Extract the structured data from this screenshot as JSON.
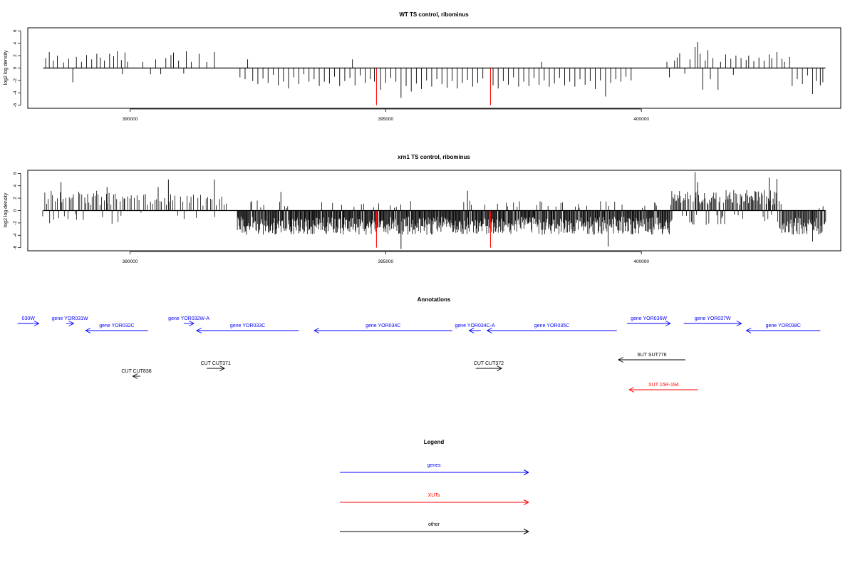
{
  "chart_data": [
    {
      "type": "bar",
      "title": "WT TS control, ribominus",
      "xlabel": "",
      "ylabel": "log2 log density",
      "xlim": [
        388000,
        403900
      ],
      "ylim": [
        -6.5,
        6.5
      ],
      "xticks": [
        390000,
        395000,
        400000
      ],
      "xtick_labels": [
        "390000",
        "395000",
        "400000"
      ],
      "yticks": [
        -6,
        -4,
        -2,
        0,
        2,
        4,
        6
      ],
      "ytick_labels": [
        "-6",
        "-4",
        "-2",
        "0",
        "2",
        "4",
        "6"
      ],
      "baseline": {
        "from": 388300,
        "to": 403600
      },
      "grid": false,
      "highlight_color": "#ff0000",
      "highlight": [
        [
          394820,
          -6
        ],
        [
          397050,
          -6
        ]
      ],
      "bars": [
        [
          388350,
          1.6
        ],
        [
          388420,
          2.6
        ],
        [
          388500,
          1.2
        ],
        [
          388580,
          2.0
        ],
        [
          388700,
          0.9
        ],
        [
          388800,
          1.5
        ],
        [
          388880,
          -2.3
        ],
        [
          388950,
          1.8
        ],
        [
          389050,
          1.0
        ],
        [
          389150,
          2.1
        ],
        [
          389250,
          1.4
        ],
        [
          389350,
          2.3
        ],
        [
          389420,
          1.7
        ],
        [
          389500,
          1.2
        ],
        [
          389600,
          2.3
        ],
        [
          389680,
          1.9
        ],
        [
          389750,
          2.7
        ],
        [
          389830,
          1.3
        ],
        [
          389900,
          2.5
        ],
        [
          389850,
          -1.0
        ],
        [
          389950,
          1.0
        ],
        [
          390250,
          1.0
        ],
        [
          390400,
          -1.0
        ],
        [
          390500,
          1.4
        ],
        [
          390600,
          -1.0
        ],
        [
          390700,
          1.6
        ],
        [
          390800,
          2.1
        ],
        [
          390850,
          2.5
        ],
        [
          390950,
          1.2
        ],
        [
          391050,
          -0.9
        ],
        [
          391100,
          2.7
        ],
        [
          391200,
          1.0
        ],
        [
          391350,
          2.3
        ],
        [
          391500,
          1.0
        ],
        [
          391650,
          2.6
        ],
        [
          392150,
          -1.5
        ],
        [
          392250,
          -1.8
        ],
        [
          392300,
          1.4
        ],
        [
          392400,
          -2.1
        ],
        [
          392500,
          -2.6
        ],
        [
          392600,
          -1.7
        ],
        [
          392700,
          -2.4
        ],
        [
          392800,
          -1.1
        ],
        [
          392900,
          -2.8
        ],
        [
          393000,
          -2.2
        ],
        [
          393100,
          -3.3
        ],
        [
          393200,
          -1.5
        ],
        [
          393300,
          -2.6
        ],
        [
          393400,
          -1.0
        ],
        [
          393500,
          -2.2
        ],
        [
          393600,
          -1.8
        ],
        [
          393700,
          -2.9
        ],
        [
          393800,
          -2.2
        ],
        [
          393900,
          -2.5
        ],
        [
          394000,
          -1.4
        ],
        [
          394100,
          -2.9
        ],
        [
          394200,
          -2.1
        ],
        [
          394300,
          -1.6
        ],
        [
          394350,
          1.4
        ],
        [
          394400,
          -2.8
        ],
        [
          394500,
          -1.2
        ],
        [
          394600,
          -2.4
        ],
        [
          394700,
          -1.8
        ],
        [
          394780,
          -2.2
        ],
        [
          394900,
          -3.5
        ],
        [
          395000,
          -2.4
        ],
        [
          395100,
          -1.6
        ],
        [
          395200,
          -2.2
        ],
        [
          395300,
          -4.8
        ],
        [
          395400,
          -2.9
        ],
        [
          395500,
          -3.8
        ],
        [
          395600,
          -2.5
        ],
        [
          395700,
          -3.4
        ],
        [
          395800,
          -2.0
        ],
        [
          395900,
          -3.0
        ],
        [
          396000,
          -1.8
        ],
        [
          396100,
          -2.6
        ],
        [
          396200,
          -3.2
        ],
        [
          396300,
          -2.1
        ],
        [
          396400,
          -3.3
        ],
        [
          396500,
          -2.4
        ],
        [
          396600,
          -1.9
        ],
        [
          396700,
          -3.0
        ],
        [
          396800,
          -2.4
        ],
        [
          396900,
          -1.7
        ],
        [
          397100,
          -2.8
        ],
        [
          397200,
          -3.3
        ],
        [
          397300,
          -2.1
        ],
        [
          397400,
          -2.7
        ],
        [
          397500,
          -1.5
        ],
        [
          397600,
          -3.0
        ],
        [
          397700,
          -2.2
        ],
        [
          397800,
          -2.9
        ],
        [
          397900,
          -1.6
        ],
        [
          398000,
          -2.7
        ],
        [
          398050,
          1.0
        ],
        [
          398100,
          -2.0
        ],
        [
          398200,
          -3.0
        ],
        [
          398300,
          -2.5
        ],
        [
          398400,
          -1.6
        ],
        [
          398500,
          -2.8
        ],
        [
          398600,
          -2.2
        ],
        [
          398700,
          -3.0
        ],
        [
          398800,
          -1.8
        ],
        [
          398900,
          -2.7
        ],
        [
          399000,
          -2.1
        ],
        [
          399100,
          -3.4
        ],
        [
          399200,
          -2.0
        ],
        [
          399300,
          -4.6
        ],
        [
          399400,
          -2.4
        ],
        [
          399500,
          -1.8
        ],
        [
          399600,
          -2.2
        ],
        [
          399700,
          -1.4
        ],
        [
          399800,
          -2.0
        ],
        [
          400500,
          1.0
        ],
        [
          400550,
          -1.5
        ],
        [
          400650,
          1.2
        ],
        [
          400700,
          1.7
        ],
        [
          400750,
          2.4
        ],
        [
          400850,
          -0.9
        ],
        [
          400950,
          1.4
        ],
        [
          401050,
          3.4
        ],
        [
          401100,
          4.2
        ],
        [
          401150,
          2.3
        ],
        [
          401200,
          -3.5
        ],
        [
          401250,
          1.2
        ],
        [
          401300,
          2.9
        ],
        [
          401350,
          -1.8
        ],
        [
          401400,
          1.6
        ],
        [
          401500,
          -3.5
        ],
        [
          401550,
          1.0
        ],
        [
          401650,
          2.2
        ],
        [
          401750,
          1.5
        ],
        [
          401800,
          -1.1
        ],
        [
          401850,
          2.0
        ],
        [
          401950,
          1.6
        ],
        [
          402050,
          1.3
        ],
        [
          402100,
          2.0
        ],
        [
          402200,
          1.1
        ],
        [
          402300,
          1.7
        ],
        [
          402400,
          1.2
        ],
        [
          402500,
          2.2
        ],
        [
          402550,
          1.6
        ],
        [
          402650,
          2.6
        ],
        [
          402750,
          1.5
        ],
        [
          402800,
          1.0
        ],
        [
          402900,
          1.8
        ],
        [
          402950,
          -2.9
        ],
        [
          403050,
          -1.8
        ],
        [
          403150,
          -2.6
        ],
        [
          403250,
          -1.2
        ],
        [
          403350,
          -4.2
        ],
        [
          403420,
          -2.1
        ],
        [
          403500,
          -2.8
        ],
        [
          403550,
          -2.3
        ]
      ]
    },
    {
      "type": "bar",
      "title": "xrn1 TS control, ribominus",
      "xlabel": "",
      "ylabel": "log2 log density",
      "xlim": [
        388000,
        403900
      ],
      "ylim": [
        -6.5,
        6.5
      ],
      "xticks": [
        390000,
        395000,
        400000
      ],
      "xtick_labels": [
        "390000",
        "395000",
        "400000"
      ],
      "yticks": [
        -6,
        -4,
        -2,
        0,
        2,
        4,
        6
      ],
      "ytick_labels": [
        "-6",
        "-4",
        "-2",
        "0",
        "2",
        "4",
        "6"
      ],
      "baseline": {
        "from": 388300,
        "to": 403600
      },
      "grid": false,
      "highlight_color": "#ff0000",
      "highlight": [
        [
          394820,
          -6
        ],
        [
          397050,
          -6
        ]
      ],
      "dense_regions": [
        {
          "from": 388300,
          "to": 389900,
          "step": 30,
          "pos_mean": 2.4,
          "neg_frac": 0.25,
          "neg_mean": -1.6,
          "pos_frac": 0.75
        },
        {
          "from": 389900,
          "to": 391900,
          "step": 45,
          "pos_mean": 2.0,
          "neg_frac": 0.12,
          "neg_mean": -1.0,
          "pos_frac": 0.8
        },
        {
          "from": 392100,
          "to": 400600,
          "step": 12,
          "pos_mean": 1.2,
          "neg_frac": 0.93,
          "neg_mean": -2.9,
          "pos_frac": 0.07
        },
        {
          "from": 400600,
          "to": 402700,
          "step": 18,
          "pos_mean": 2.5,
          "neg_frac": 0.2,
          "neg_mean": -1.8,
          "pos_frac": 0.8
        },
        {
          "from": 402700,
          "to": 403600,
          "step": 15,
          "pos_mean": 0.8,
          "neg_frac": 0.92,
          "neg_mean": -3.0,
          "pos_frac": 0.08
        }
      ],
      "bars": [
        [
          388650,
          4.6
        ],
        [
          389550,
          3.8
        ],
        [
          390550,
          3.8
        ],
        [
          390750,
          5.0
        ],
        [
          391650,
          5.0
        ],
        [
          392950,
          3.0
        ],
        [
          396600,
          3.2
        ],
        [
          395300,
          -6.2
        ],
        [
          399350,
          -5.8
        ],
        [
          401050,
          6.2
        ],
        [
          401100,
          4.6
        ],
        [
          402500,
          5.3
        ],
        [
          402650,
          5.1
        ],
        [
          403350,
          -5.0
        ]
      ]
    }
  ],
  "annotations": {
    "title": "Annotations",
    "tracks": [
      {
        "label": "030W",
        "from": 387800,
        "to": 388220,
        "strand": "+",
        "kind": "gene",
        "row": 0
      },
      {
        "label": "gene YOR031W",
        "from": 388750,
        "to": 388900,
        "strand": "+",
        "kind": "gene",
        "row": 0
      },
      {
        "label": "gene YOR032C",
        "from": 389130,
        "to": 390350,
        "strand": "-",
        "kind": "gene",
        "row": 1
      },
      {
        "label": "gene YOR032W-A",
        "from": 391050,
        "to": 391250,
        "strand": "+",
        "kind": "gene",
        "row": 0
      },
      {
        "label": "gene YOR033C",
        "from": 391300,
        "to": 393300,
        "strand": "-",
        "kind": "gene",
        "row": 1
      },
      {
        "label": "gene YOR034C",
        "from": 393600,
        "to": 396300,
        "strand": "-",
        "kind": "gene",
        "row": 1
      },
      {
        "label": "gene YOR034C-A",
        "from": 396630,
        "to": 396860,
        "strand": "-",
        "kind": "gene",
        "row": 1
      },
      {
        "label": "gene YOR035C",
        "from": 396980,
        "to": 399520,
        "strand": "-",
        "kind": "gene",
        "row": 1
      },
      {
        "label": "gene YOR036W",
        "from": 399720,
        "to": 400570,
        "strand": "+",
        "kind": "gene",
        "row": 0
      },
      {
        "label": "gene YOR037W",
        "from": 400830,
        "to": 401960,
        "strand": "+",
        "kind": "gene",
        "row": 0
      },
      {
        "label": "gene YOR038C",
        "from": 402050,
        "to": 403500,
        "strand": "-",
        "kind": "gene",
        "row": 1
      },
      {
        "label": "SUT SUT776",
        "from": 399550,
        "to": 400860,
        "strand": "-",
        "kind": "other",
        "row": 2
      },
      {
        "label": "CUT CUT371",
        "from": 391500,
        "to": 391850,
        "strand": "+",
        "kind": "other",
        "row": 3
      },
      {
        "label": "CUT CUT372",
        "from": 396760,
        "to": 397270,
        "strand": "+",
        "kind": "other",
        "row": 3
      },
      {
        "label": "CUT CUT838",
        "from": 390050,
        "to": 390200,
        "strand": "-",
        "kind": "other",
        "row": 4
      },
      {
        "label": "XUT 15R-194",
        "from": 399760,
        "to": 401110,
        "strand": "-",
        "kind": "xut",
        "row": 5
      }
    ]
  },
  "legend": {
    "title": "Legend",
    "items": [
      {
        "label": "genes",
        "color": "#0000ff"
      },
      {
        "label": "XUTs",
        "color": "#ff0000"
      },
      {
        "label": "other",
        "color": "#000000"
      }
    ]
  },
  "colors": {
    "gene": "#0000ff",
    "xut": "#ff0000",
    "other": "#000000",
    "bar": "#000000"
  }
}
